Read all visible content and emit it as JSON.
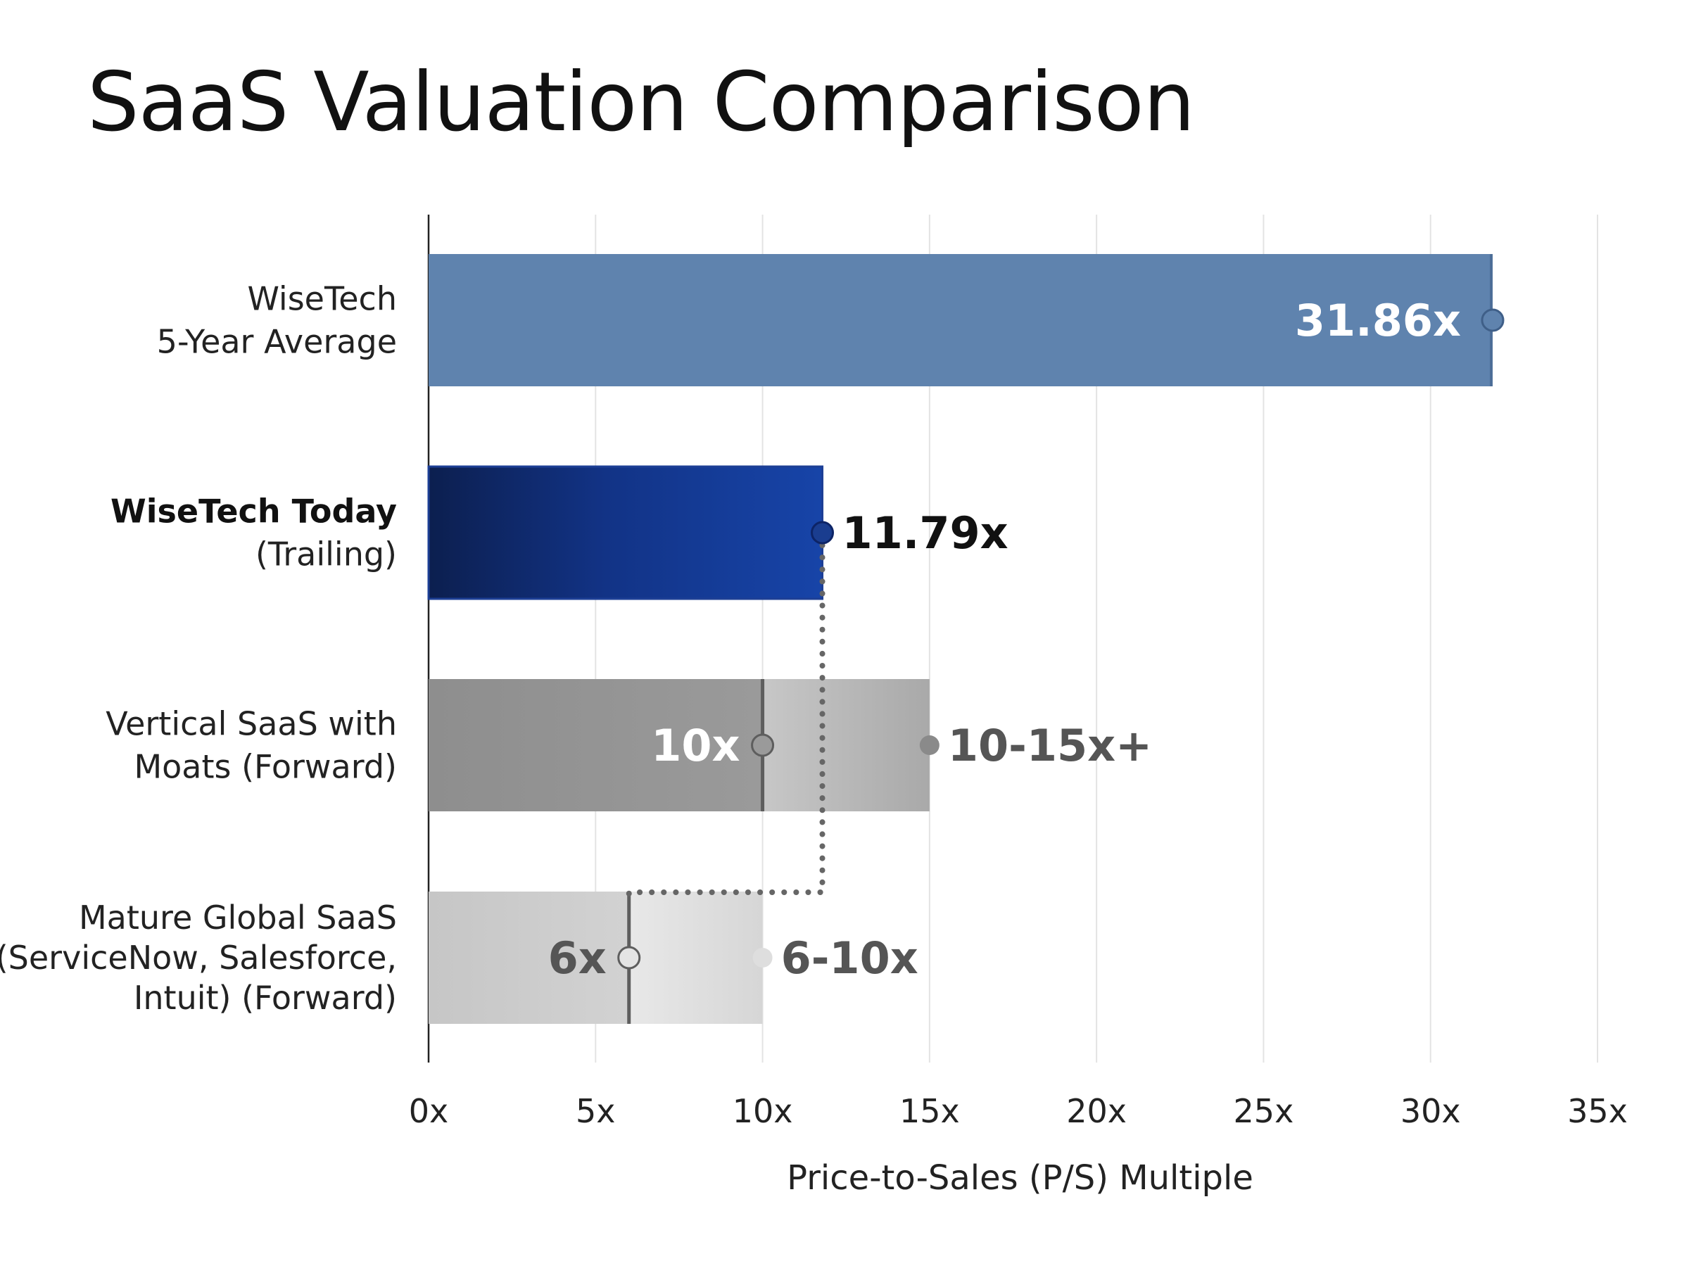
{
  "chart_data": {
    "type": "bar",
    "title": "SaaS Valuation Comparison",
    "xlabel": "Price-to-Sales (P/S) Multiple",
    "ylabel": "",
    "xlim": [
      0,
      35
    ],
    "x_ticks": [
      {
        "value": 0,
        "label": "0x"
      },
      {
        "value": 5,
        "label": "5x"
      },
      {
        "value": 10,
        "label": "10x"
      },
      {
        "value": 15,
        "label": "15x"
      },
      {
        "value": 20,
        "label": "20x"
      },
      {
        "value": 25,
        "label": "25x"
      },
      {
        "value": 30,
        "label": "30x"
      },
      {
        "value": 35,
        "label": "35x"
      }
    ],
    "grid": true,
    "orientation": "horizontal",
    "bars": [
      {
        "label_lines": [
          "WiseTech",
          "5-Year Average"
        ],
        "bold_first_line": false,
        "value": 31.86,
        "value_label": "31.86x",
        "color": "#5f83ae"
      },
      {
        "label_lines": [
          "WiseTech Today",
          "(Trailing)"
        ],
        "bold_first_line": true,
        "value": 11.79,
        "value_label": "11.79x",
        "color": "#1640a0"
      },
      {
        "label_lines": [
          "Vertical SaaS with",
          "Moats (Forward)"
        ],
        "bold_first_line": false,
        "low": 10,
        "high": 15,
        "low_label": "10x",
        "range_label": "10-15x+",
        "color": "#8f8f8f"
      },
      {
        "label_lines": [
          "Mature Global SaaS",
          "(ServiceNow, Salesforce,",
          "Intuit) (Forward)"
        ],
        "bold_first_line": false,
        "low": 6,
        "high": 10,
        "low_label": "6x",
        "range_label": "6-10x",
        "color": "#c9c9c9"
      }
    ],
    "connector": {
      "style": "dotted",
      "from_value": 11.79,
      "to_value": 6,
      "color": "#666666"
    }
  }
}
